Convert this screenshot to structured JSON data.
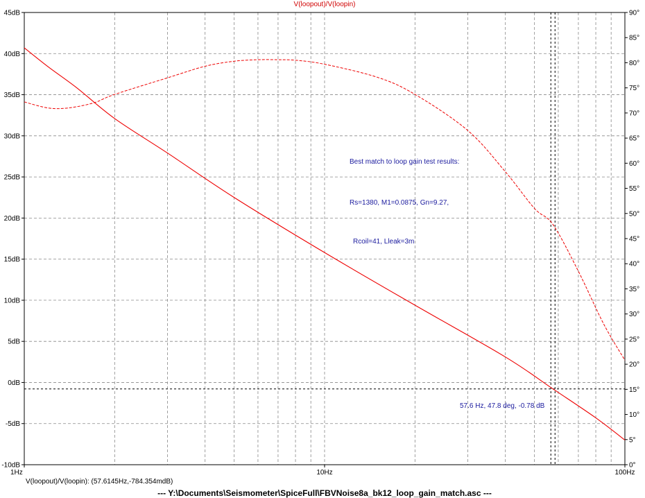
{
  "trace_title": "V(loopout)/V(loopin)",
  "cursor_readout": "V(loopout)/V(loopin): (57.6145Hz,-784.354mdB)",
  "file_title": "---  Y:\\Documents\\Seismometer\\SpiceFull\\FBVNoise8a_bk12_loop_gain_match.asc  ---",
  "annotations": [
    "Best match to loop gain test results:",
    "Rs=1380, M1=0.0875, Gn=9.27,",
    "Rcoil=41, Lleak=3m",
    "57.6 Hz, 47.8 deg, -0.78 dB"
  ],
  "colors": {
    "trace": "#ee0000",
    "annotation": "#1a1a9e",
    "grid": "#888888",
    "frame": "#000000"
  },
  "chart_data": {
    "type": "line",
    "x_scale": "log",
    "xlim": [
      1,
      100
    ],
    "ylim_left": [
      -10,
      45
    ],
    "ylim_right": [
      0,
      90
    ],
    "x_tick_labels": [
      "1Hz",
      "10Hz",
      "100Hz"
    ],
    "y_left_tick_labels": [
      "-10dB",
      "-5dB",
      "0dB",
      "5dB",
      "10dB",
      "15dB",
      "20dB",
      "25dB",
      "30dB",
      "35dB",
      "40dB",
      "45dB"
    ],
    "y_right_tick_labels": [
      "0°",
      "5°",
      "10°",
      "15°",
      "20°",
      "25°",
      "30°",
      "35°",
      "40°",
      "45°",
      "50°",
      "55°",
      "60°",
      "65°",
      "70°",
      "75°",
      "80°",
      "85°",
      "90°"
    ],
    "grid": true,
    "magnitude": {
      "axis": "left",
      "style": "solid",
      "x": [
        1,
        1.2,
        1.5,
        2,
        3,
        5,
        10,
        20,
        40,
        57.6,
        80,
        100
      ],
      "y": [
        40.7,
        38.4,
        35.8,
        32.1,
        27.9,
        22.5,
        15.8,
        9.4,
        3.1,
        -0.78,
        -4.3,
        -7.0
      ]
    },
    "phase": {
      "axis": "right",
      "style": "dashed",
      "x": [
        1,
        1.2,
        1.4,
        1.7,
        2,
        3,
        4,
        5,
        6,
        7,
        8,
        10,
        15,
        20,
        30,
        40,
        50,
        57.6,
        70,
        85,
        100
      ],
      "y": [
        72.2,
        71.0,
        71.0,
        72.0,
        73.7,
        77.0,
        79.3,
        80.3,
        80.6,
        80.6,
        80.5,
        79.7,
        77.1,
        73.7,
        66.5,
        58.3,
        51.0,
        47.8,
        38.5,
        28.0,
        20.8
      ]
    },
    "cursor": {
      "x": 57.6,
      "y": -0.78,
      "phase_deg": 47.8
    }
  }
}
